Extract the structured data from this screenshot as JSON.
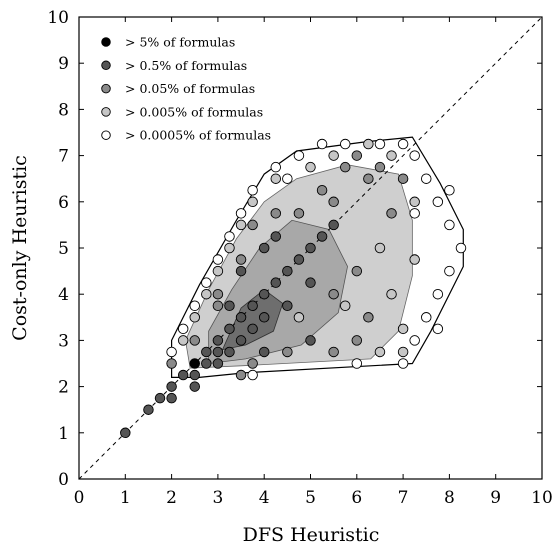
{
  "chart_data": {
    "type": "scatter",
    "xlabel": "DFS Heuristic",
    "ylabel": "Cost-only Heuristic",
    "xlim": [
      0,
      10
    ],
    "ylim": [
      0,
      10
    ],
    "x_ticks": [
      "0",
      "1",
      "2",
      "3",
      "4",
      "5",
      "6",
      "7",
      "8",
      "9",
      "10"
    ],
    "y_ticks": [
      "0",
      "1",
      "2",
      "3",
      "4",
      "5",
      "6",
      "7",
      "8",
      "9",
      "10"
    ],
    "diagonal_reference": "y = x (dashed)",
    "grid": false,
    "legend_position": "top-left",
    "series": [
      {
        "name": "> 5% of formulas",
        "color": "#000000"
      },
      {
        "name": "> 0.5% of formulas",
        "color": "#555555"
      },
      {
        "name": "> 0.05% of formulas",
        "color": "#8a8a8a"
      },
      {
        "name": "> 0.005% of formulas",
        "color": "#c6c6c6"
      },
      {
        "name": "> 0.0005% of formulas",
        "color": "#ffffff"
      }
    ],
    "points": [
      {
        "s": 1,
        "x": 1.0,
        "y": 1.0
      },
      {
        "s": 1,
        "x": 1.5,
        "y": 1.5
      },
      {
        "s": 1,
        "x": 1.75,
        "y": 1.75
      },
      {
        "s": 1,
        "x": 2.0,
        "y": 2.0
      },
      {
        "s": 1,
        "x": 2.0,
        "y": 1.75
      },
      {
        "s": 1,
        "x": 2.25,
        "y": 2.25
      },
      {
        "s": 0,
        "x": 2.5,
        "y": 2.5
      },
      {
        "s": 1,
        "x": 2.5,
        "y": 2.0
      },
      {
        "s": 1,
        "x": 2.5,
        "y": 2.25
      },
      {
        "s": 1,
        "x": 2.75,
        "y": 2.75
      },
      {
        "s": 1,
        "x": 2.75,
        "y": 2.5
      },
      {
        "s": 1,
        "x": 3.0,
        "y": 3.0
      },
      {
        "s": 1,
        "x": 3.0,
        "y": 2.5
      },
      {
        "s": 1,
        "x": 3.0,
        "y": 2.75
      },
      {
        "s": 1,
        "x": 3.25,
        "y": 3.25
      },
      {
        "s": 1,
        "x": 3.25,
        "y": 2.75
      },
      {
        "s": 1,
        "x": 3.5,
        "y": 3.5
      },
      {
        "s": 1,
        "x": 3.5,
        "y": 3.0
      },
      {
        "s": 1,
        "x": 3.75,
        "y": 3.75
      },
      {
        "s": 1,
        "x": 3.75,
        "y": 3.25
      },
      {
        "s": 1,
        "x": 4.0,
        "y": 4.0
      },
      {
        "s": 1,
        "x": 4.0,
        "y": 3.5
      },
      {
        "s": 1,
        "x": 4.25,
        "y": 4.25
      },
      {
        "s": 1,
        "x": 4.5,
        "y": 4.5
      },
      {
        "s": 1,
        "x": 4.5,
        "y": 3.75
      },
      {
        "s": 1,
        "x": 4.75,
        "y": 4.75
      },
      {
        "s": 1,
        "x": 5.0,
        "y": 5.0
      },
      {
        "s": 1,
        "x": 5.0,
        "y": 4.25
      },
      {
        "s": 1,
        "x": 5.25,
        "y": 5.25
      },
      {
        "s": 1,
        "x": 3.5,
        "y": 4.5
      },
      {
        "s": 1,
        "x": 4.0,
        "y": 5.0
      },
      {
        "s": 1,
        "x": 4.25,
        "y": 5.25
      },
      {
        "s": 1,
        "x": 5.5,
        "y": 5.5
      },
      {
        "s": 1,
        "x": 5.0,
        "y": 3.0
      },
      {
        "s": 1,
        "x": 4.0,
        "y": 2.75
      },
      {
        "s": 1,
        "x": 3.25,
        "y": 3.75
      },
      {
        "s": 2,
        "x": 2.0,
        "y": 2.5
      },
      {
        "s": 2,
        "x": 2.5,
        "y": 3.0
      },
      {
        "s": 2,
        "x": 3.0,
        "y": 3.75
      },
      {
        "s": 2,
        "x": 3.0,
        "y": 4.0
      },
      {
        "s": 2,
        "x": 3.5,
        "y": 4.75
      },
      {
        "s": 2,
        "x": 3.75,
        "y": 5.5
      },
      {
        "s": 2,
        "x": 4.25,
        "y": 5.75
      },
      {
        "s": 2,
        "x": 5.5,
        "y": 4.0
      },
      {
        "s": 2,
        "x": 6.0,
        "y": 4.5
      },
      {
        "s": 2,
        "x": 6.0,
        "y": 3.0
      },
      {
        "s": 2,
        "x": 5.75,
        "y": 6.75
      },
      {
        "s": 2,
        "x": 6.0,
        "y": 7.0
      },
      {
        "s": 2,
        "x": 6.25,
        "y": 6.5
      },
      {
        "s": 2,
        "x": 6.5,
        "y": 6.75
      },
      {
        "s": 2,
        "x": 4.5,
        "y": 2.75
      },
      {
        "s": 2,
        "x": 3.5,
        "y": 2.25
      },
      {
        "s": 2,
        "x": 3.75,
        "y": 2.5
      },
      {
        "s": 2,
        "x": 5.5,
        "y": 2.75
      },
      {
        "s": 2,
        "x": 6.75,
        "y": 5.75
      },
      {
        "s": 2,
        "x": 7.0,
        "y": 6.5
      },
      {
        "s": 2,
        "x": 6.25,
        "y": 3.5
      },
      {
        "s": 2,
        "x": 5.25,
        "y": 6.25
      },
      {
        "s": 2,
        "x": 4.75,
        "y": 5.75
      },
      {
        "s": 2,
        "x": 5.5,
        "y": 6.0
      },
      {
        "s": 3,
        "x": 2.25,
        "y": 3.0
      },
      {
        "s": 3,
        "x": 2.5,
        "y": 3.5
      },
      {
        "s": 3,
        "x": 2.75,
        "y": 4.0
      },
      {
        "s": 3,
        "x": 3.0,
        "y": 4.5
      },
      {
        "s": 3,
        "x": 3.25,
        "y": 5.0
      },
      {
        "s": 3,
        "x": 3.5,
        "y": 5.5
      },
      {
        "s": 3,
        "x": 3.75,
        "y": 6.0
      },
      {
        "s": 3,
        "x": 4.25,
        "y": 6.5
      },
      {
        "s": 3,
        "x": 5.0,
        "y": 6.75
      },
      {
        "s": 3,
        "x": 5.5,
        "y": 7.0
      },
      {
        "s": 3,
        "x": 6.25,
        "y": 7.25
      },
      {
        "s": 3,
        "x": 6.75,
        "y": 7.0
      },
      {
        "s": 3,
        "x": 6.5,
        "y": 5.0
      },
      {
        "s": 3,
        "x": 6.75,
        "y": 4.0
      },
      {
        "s": 3,
        "x": 7.0,
        "y": 3.25
      },
      {
        "s": 3,
        "x": 6.5,
        "y": 2.75
      },
      {
        "s": 3,
        "x": 7.0,
        "y": 2.75
      },
      {
        "s": 3,
        "x": 7.25,
        "y": 4.75
      },
      {
        "s": 3,
        "x": 7.25,
        "y": 6.0
      },
      {
        "s": 3,
        "x": 5.75,
        "y": 3.75
      },
      {
        "s": 3,
        "x": 4.75,
        "y": 3.5
      },
      {
        "s": 4,
        "x": 2.0,
        "y": 2.75
      },
      {
        "s": 4,
        "x": 2.25,
        "y": 3.25
      },
      {
        "s": 4,
        "x": 2.5,
        "y": 3.75
      },
      {
        "s": 4,
        "x": 2.75,
        "y": 4.25
      },
      {
        "s": 4,
        "x": 3.0,
        "y": 4.75
      },
      {
        "s": 4,
        "x": 3.25,
        "y": 5.25
      },
      {
        "s": 4,
        "x": 3.5,
        "y": 5.75
      },
      {
        "s": 4,
        "x": 3.75,
        "y": 6.25
      },
      {
        "s": 4,
        "x": 4.25,
        "y": 6.75
      },
      {
        "s": 4,
        "x": 4.75,
        "y": 7.0
      },
      {
        "s": 4,
        "x": 5.25,
        "y": 7.25
      },
      {
        "s": 4,
        "x": 5.75,
        "y": 7.25
      },
      {
        "s": 4,
        "x": 6.5,
        "y": 7.25
      },
      {
        "s": 4,
        "x": 7.0,
        "y": 7.25
      },
      {
        "s": 4,
        "x": 7.25,
        "y": 7.0
      },
      {
        "s": 4,
        "x": 7.5,
        "y": 6.5
      },
      {
        "s": 4,
        "x": 7.75,
        "y": 6.0
      },
      {
        "s": 4,
        "x": 8.0,
        "y": 5.5
      },
      {
        "s": 4,
        "x": 8.25,
        "y": 5.0
      },
      {
        "s": 4,
        "x": 8.0,
        "y": 4.5
      },
      {
        "s": 4,
        "x": 7.75,
        "y": 4.0
      },
      {
        "s": 4,
        "x": 7.5,
        "y": 3.5
      },
      {
        "s": 4,
        "x": 7.25,
        "y": 3.0
      },
      {
        "s": 4,
        "x": 7.0,
        "y": 2.5
      },
      {
        "s": 4,
        "x": 7.75,
        "y": 3.25
      },
      {
        "s": 4,
        "x": 8.0,
        "y": 6.25
      },
      {
        "s": 4,
        "x": 6.0,
        "y": 2.5
      },
      {
        "s": 4,
        "x": 3.75,
        "y": 2.25
      },
      {
        "s": 4,
        "x": 4.5,
        "y": 6.5
      },
      {
        "s": 4,
        "x": 7.25,
        "y": 5.75
      }
    ]
  }
}
